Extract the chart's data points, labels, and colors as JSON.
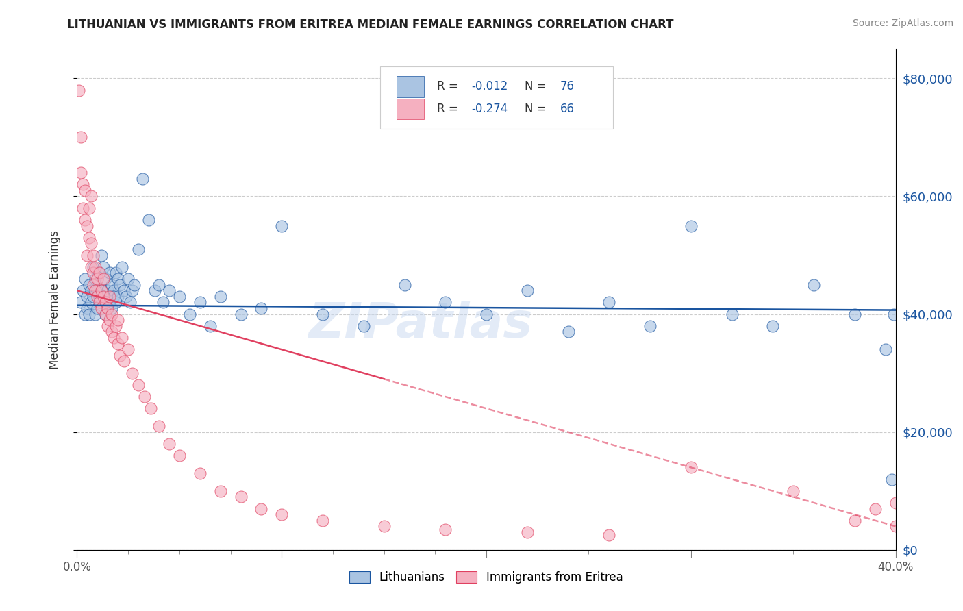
{
  "title": "LITHUANIAN VS IMMIGRANTS FROM ERITREA MEDIAN FEMALE EARNINGS CORRELATION CHART",
  "source": "Source: ZipAtlas.com",
  "ylabel": "Median Female Earnings",
  "legend_labels": [
    "Lithuanians",
    "Immigrants from Eritrea"
  ],
  "blue_R": -0.012,
  "blue_N": 76,
  "pink_R": -0.274,
  "pink_N": 66,
  "blue_color": "#aac4e2",
  "pink_color": "#f5b0c0",
  "blue_line_color": "#1a55a0",
  "pink_line_color": "#e04060",
  "xlim": [
    0.0,
    0.4
  ],
  "ylim": [
    0,
    85000
  ],
  "yticks": [
    0,
    20000,
    40000,
    60000,
    80000
  ],
  "xtick_positions": [
    0.0,
    0.2,
    0.4
  ],
  "xtick_labels": [
    "0.0%",
    "",
    "40.0%"
  ],
  "watermark": "ZIPatlas",
  "blue_scatter_x": [
    0.002,
    0.003,
    0.004,
    0.004,
    0.005,
    0.005,
    0.006,
    0.006,
    0.007,
    0.007,
    0.008,
    0.008,
    0.009,
    0.009,
    0.01,
    0.01,
    0.011,
    0.011,
    0.012,
    0.012,
    0.013,
    0.013,
    0.014,
    0.014,
    0.015,
    0.015,
    0.016,
    0.016,
    0.017,
    0.017,
    0.018,
    0.018,
    0.019,
    0.019,
    0.02,
    0.02,
    0.021,
    0.022,
    0.023,
    0.024,
    0.025,
    0.026,
    0.027,
    0.028,
    0.03,
    0.032,
    0.035,
    0.038,
    0.04,
    0.042,
    0.045,
    0.05,
    0.055,
    0.06,
    0.065,
    0.07,
    0.08,
    0.09,
    0.1,
    0.12,
    0.14,
    0.16,
    0.18,
    0.2,
    0.22,
    0.24,
    0.26,
    0.28,
    0.3,
    0.32,
    0.34,
    0.36,
    0.38,
    0.395,
    0.398,
    0.399
  ],
  "blue_scatter_y": [
    42000,
    44000,
    40000,
    46000,
    43000,
    41000,
    45000,
    40000,
    44000,
    42000,
    48000,
    43000,
    40000,
    46000,
    44000,
    41000,
    47000,
    43000,
    50000,
    44000,
    48000,
    43000,
    40000,
    46000,
    44000,
    41000,
    47000,
    42000,
    45000,
    41000,
    44000,
    43000,
    47000,
    42000,
    46000,
    43000,
    45000,
    48000,
    44000,
    43000,
    46000,
    42000,
    44000,
    45000,
    51000,
    63000,
    56000,
    44000,
    45000,
    42000,
    44000,
    43000,
    40000,
    42000,
    38000,
    43000,
    40000,
    41000,
    55000,
    40000,
    38000,
    45000,
    42000,
    40000,
    44000,
    37000,
    42000,
    38000,
    55000,
    40000,
    38000,
    45000,
    40000,
    34000,
    12000,
    40000
  ],
  "pink_scatter_x": [
    0.001,
    0.002,
    0.002,
    0.003,
    0.003,
    0.004,
    0.004,
    0.005,
    0.005,
    0.006,
    0.006,
    0.007,
    0.007,
    0.007,
    0.008,
    0.008,
    0.008,
    0.009,
    0.009,
    0.01,
    0.01,
    0.011,
    0.011,
    0.012,
    0.012,
    0.013,
    0.013,
    0.014,
    0.014,
    0.015,
    0.015,
    0.016,
    0.016,
    0.017,
    0.017,
    0.018,
    0.019,
    0.02,
    0.02,
    0.021,
    0.022,
    0.023,
    0.025,
    0.027,
    0.03,
    0.033,
    0.036,
    0.04,
    0.045,
    0.05,
    0.06,
    0.07,
    0.08,
    0.09,
    0.1,
    0.12,
    0.15,
    0.18,
    0.22,
    0.26,
    0.3,
    0.35,
    0.38,
    0.39,
    0.4,
    0.4
  ],
  "pink_scatter_y": [
    78000,
    64000,
    70000,
    62000,
    58000,
    56000,
    61000,
    55000,
    50000,
    53000,
    58000,
    48000,
    52000,
    60000,
    47000,
    45000,
    50000,
    44000,
    48000,
    43000,
    46000,
    42000,
    47000,
    41000,
    44000,
    43000,
    46000,
    40000,
    42000,
    38000,
    41000,
    39000,
    43000,
    37000,
    40000,
    36000,
    38000,
    35000,
    39000,
    33000,
    36000,
    32000,
    34000,
    30000,
    28000,
    26000,
    24000,
    21000,
    18000,
    16000,
    13000,
    10000,
    9000,
    7000,
    6000,
    5000,
    4000,
    3500,
    3000,
    2500,
    14000,
    10000,
    5000,
    7000,
    4000,
    8000
  ]
}
